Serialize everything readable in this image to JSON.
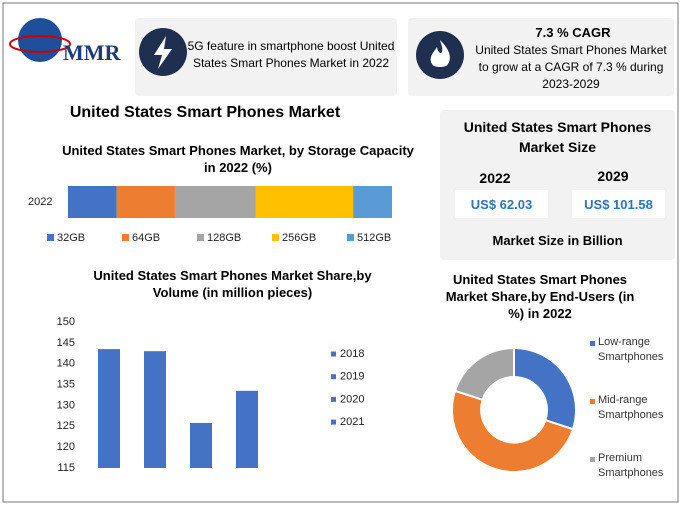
{
  "logo": "MMR",
  "highlights": [
    {
      "text": "5G feature in smartphone boost United States Smart Phones Market in 2022"
    },
    {
      "title": "7.3 % CAGR",
      "text": "United States Smart Phones Market to grow at a CAGR of 7.3 % during 2023-2029"
    }
  ],
  "main_title": "United States Smart Phones Market",
  "market_size": {
    "title": "United States Smart Phones Market Size",
    "years": [
      "2022",
      "2029"
    ],
    "values": [
      "US$ 62.03",
      "US$ 101.58"
    ],
    "note": "Market Size in Billion"
  },
  "chart_data": [
    {
      "type": "bar",
      "stacked": true,
      "orientation": "horizontal",
      "title": "United States Smart Phones Market, by Storage Capacity in 2022 (%)",
      "categories": [
        "2022"
      ],
      "xlim": [
        0,
        100
      ],
      "series": [
        {
          "name": "32GB",
          "color": "#4472c4",
          "values": [
            15
          ]
        },
        {
          "name": "64GB",
          "color": "#ed7d31",
          "values": [
            18
          ]
        },
        {
          "name": "128GB",
          "color": "#a5a5a5",
          "values": [
            25
          ]
        },
        {
          "name": "256GB",
          "color": "#ffc000",
          "values": [
            30
          ]
        },
        {
          "name": "512GB",
          "color": "#5b9bd5",
          "values": [
            12
          ]
        }
      ]
    },
    {
      "type": "bar",
      "stacked": false,
      "title": "United States Smart Phones Market Share,by Volume (in million pieces)",
      "categories": [
        null
      ],
      "ylim": [
        115,
        150
      ],
      "yticks": [
        115,
        120,
        125,
        130,
        135,
        140,
        145,
        150
      ],
      "grid": false,
      "series": [
        {
          "name": "2018",
          "color": "#4472c4",
          "values": [
            143.5
          ]
        },
        {
          "name": "2019",
          "color": "#4472c4",
          "values": [
            143
          ]
        },
        {
          "name": "2020",
          "color": "#4472c4",
          "values": [
            125.8
          ]
        },
        {
          "name": "2021",
          "color": "#4472c4",
          "values": [
            133.5
          ]
        }
      ]
    },
    {
      "type": "pie",
      "donut": true,
      "title": "United States Smart Phones Market Share,by End-Users (in %) in 2022",
      "categories": [
        "Low-range Smartphones",
        "Mid-range Smartphones",
        "Premium Smartphones"
      ],
      "values": [
        30,
        50,
        20
      ],
      "colors": [
        "#4472c4",
        "#ed7d31",
        "#a5a5a5"
      ]
    }
  ]
}
